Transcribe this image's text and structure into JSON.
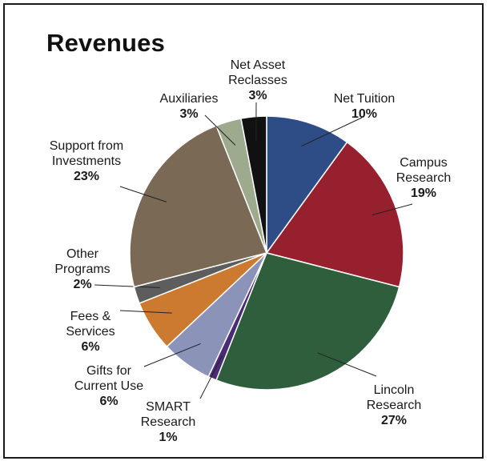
{
  "chart_data": {
    "type": "pie",
    "title": "Revenues",
    "slices": [
      {
        "name": "Net Tuition",
        "pct_label": "10%",
        "value": 10,
        "color": "#2e4d86"
      },
      {
        "name": "Campus Research",
        "lines": [
          "Campus",
          "Research"
        ],
        "pct_label": "19%",
        "value": 19,
        "color": "#97202f"
      },
      {
        "name": "Lincoln Research",
        "lines": [
          "Lincoln",
          "Research"
        ],
        "pct_label": "27%",
        "value": 27,
        "color": "#2f5e3c"
      },
      {
        "name": "SMART Research",
        "lines": [
          "SMART",
          "Research"
        ],
        "pct_label": "1%",
        "value": 1,
        "color": "#4a2b75"
      },
      {
        "name": "Gifts for Current Use",
        "lines": [
          "Gifts for",
          "Current Use"
        ],
        "pct_label": "6%",
        "value": 6,
        "color": "#8c93b8"
      },
      {
        "name": "Fees & Services",
        "lines": [
          "Fees &",
          "Services"
        ],
        "pct_label": "6%",
        "value": 6,
        "color": "#cc7a30"
      },
      {
        "name": "Other Programs",
        "lines": [
          "Other",
          "Programs"
        ],
        "pct_label": "2%",
        "value": 2,
        "color": "#5d5d5d"
      },
      {
        "name": "Support from Investments",
        "lines": [
          "Support from",
          "Investments"
        ],
        "pct_label": "23%",
        "value": 23,
        "color": "#7a6a55"
      },
      {
        "name": "Auxiliaries",
        "pct_label": "3%",
        "value": 3,
        "color": "#9daa8d"
      },
      {
        "name": "Net Asset Reclasses",
        "lines": [
          "Net Asset",
          "Reclasses"
        ],
        "pct_label": "3%",
        "value": 3,
        "color": "#111111"
      }
    ]
  }
}
